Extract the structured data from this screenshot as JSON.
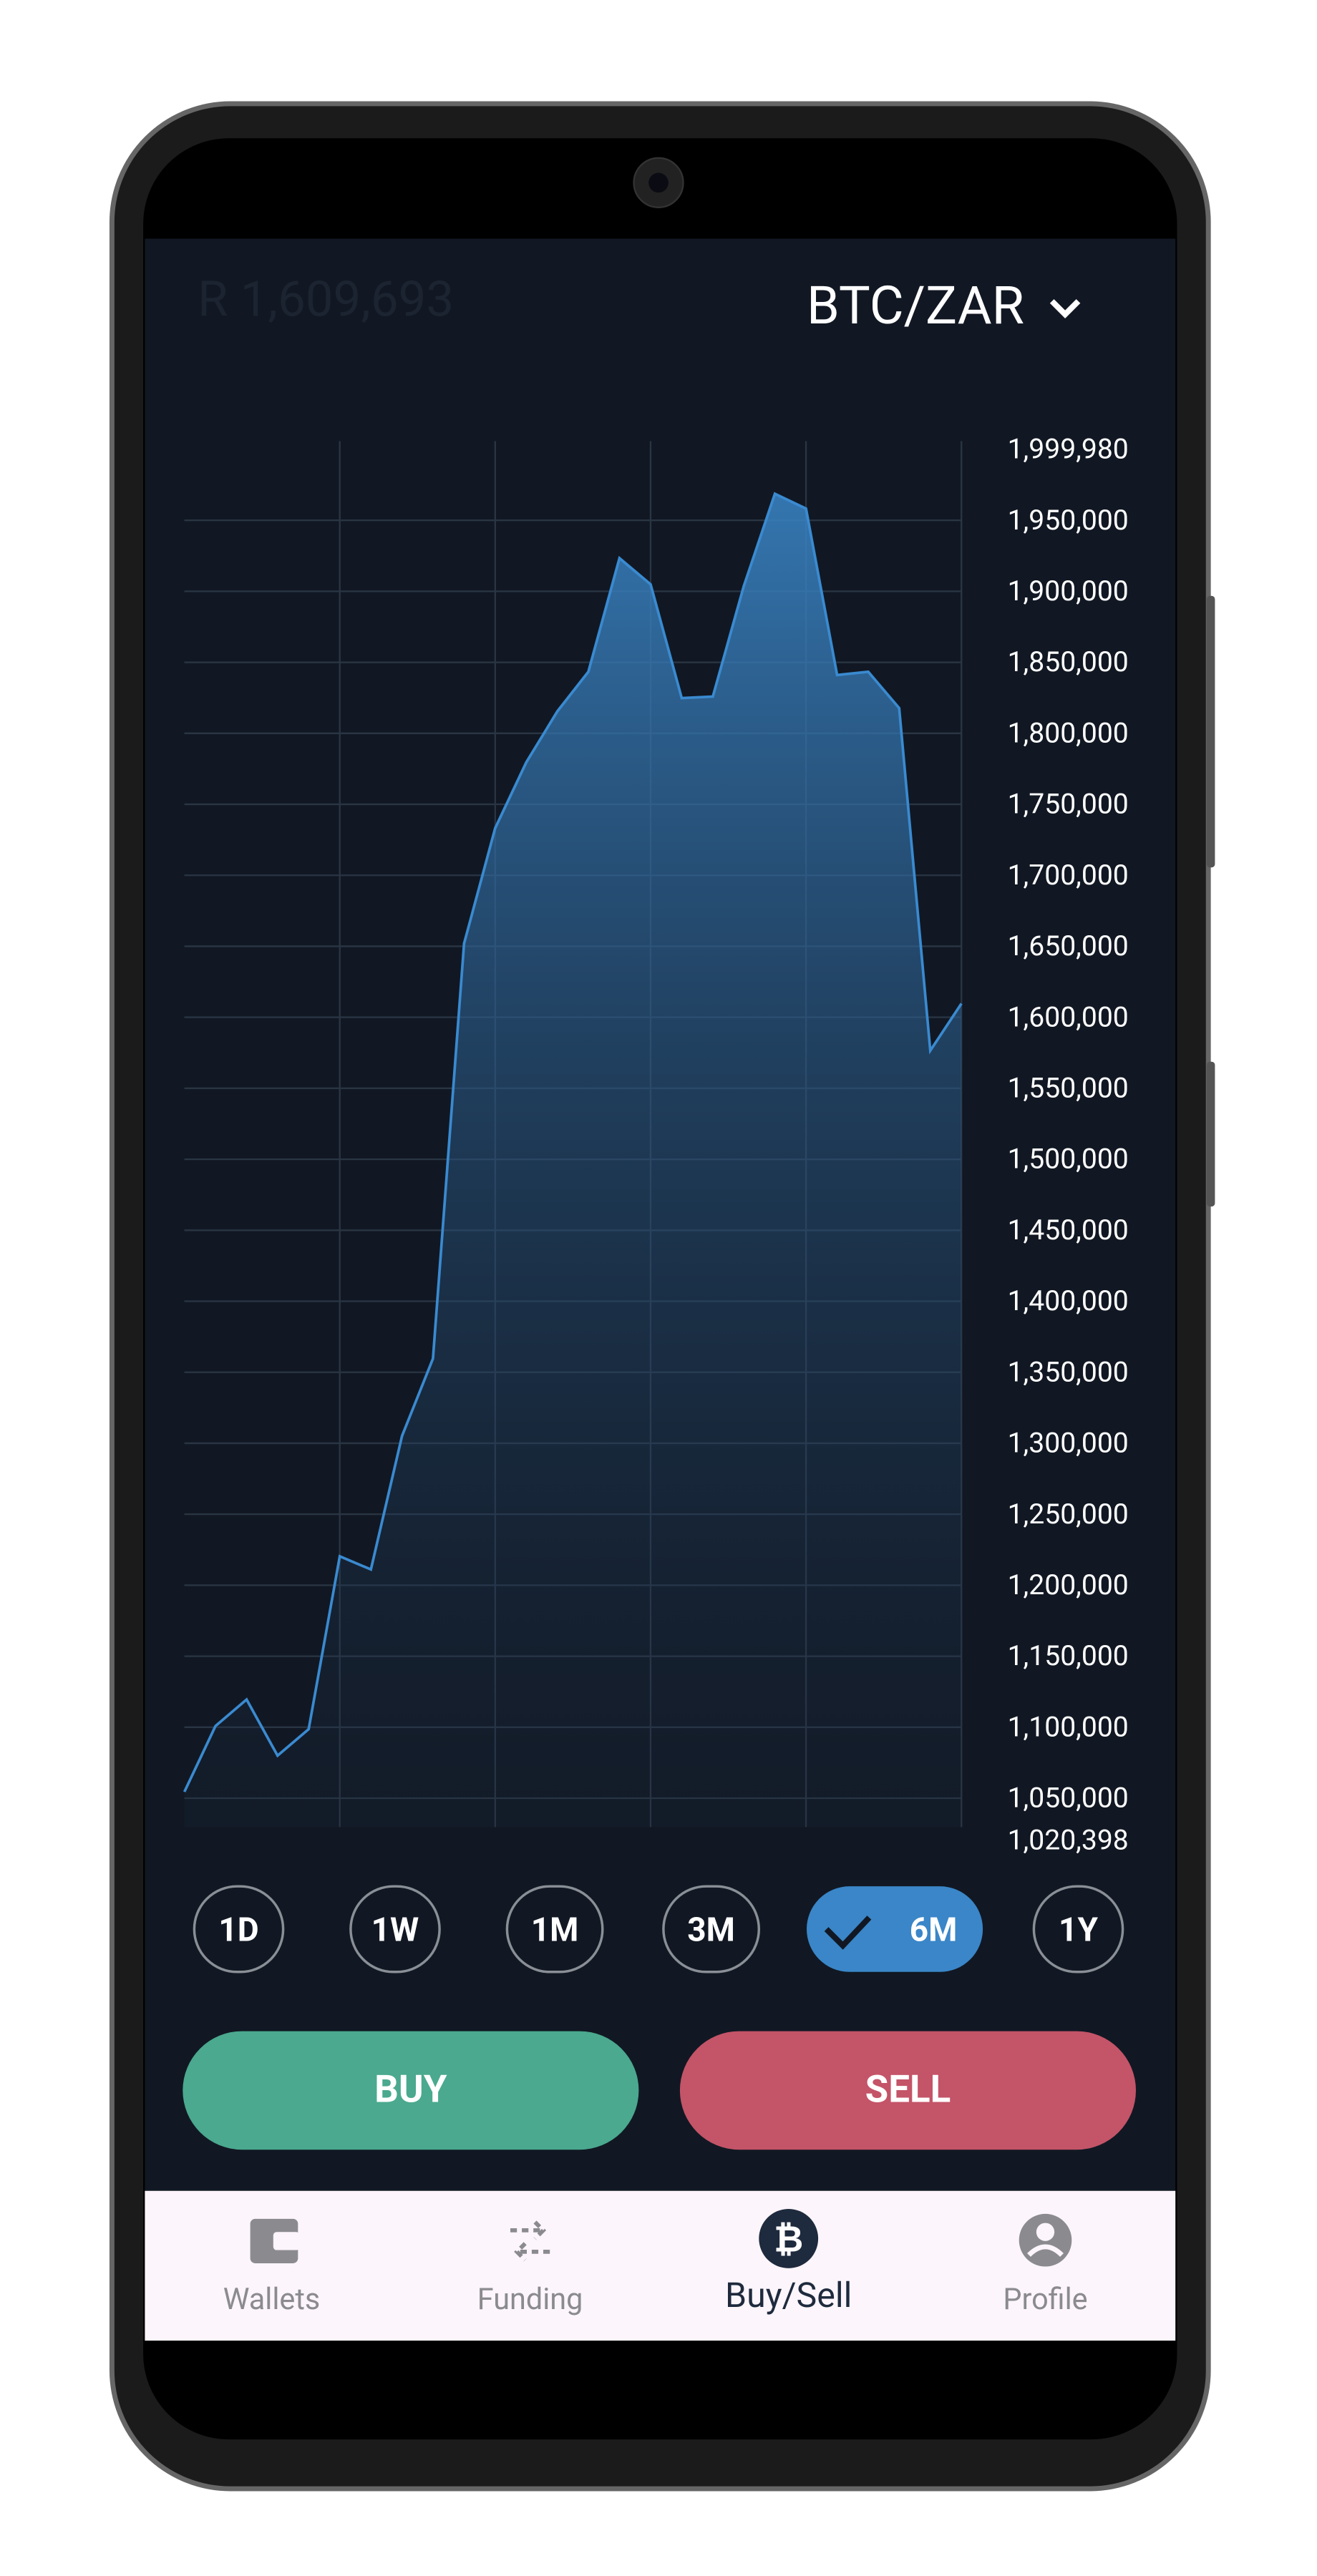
{
  "header": {
    "price": "R 1,609,693",
    "pair": "BTC/ZAR"
  },
  "chart_data": {
    "type": "area",
    "color": "#3a8ad0",
    "values": [
      1054500,
      1100900,
      1119500,
      1080000,
      1098600,
      1220400,
      1211100,
      1305100,
      1359600,
      1652000,
      1733200,
      1779600,
      1815500,
      1843400,
      1923400,
      1904900,
      1824800,
      1825900,
      1903700,
      1968700,
      1958200,
      1841000,
      1843400,
      1817800,
      1576500,
      1609693
    ],
    "ylim": [
      1020398,
      1999980
    ],
    "yticks": [
      {
        "value": 1020398,
        "label": "1,020,398"
      },
      {
        "value": 1050000,
        "label": "1,050,000"
      },
      {
        "value": 1100000,
        "label": "1,100,000"
      },
      {
        "value": 1150000,
        "label": "1,150,000"
      },
      {
        "value": 1200000,
        "label": "1,200,000"
      },
      {
        "value": 1250000,
        "label": "1,250,000"
      },
      {
        "value": 1300000,
        "label": "1,300,000"
      },
      {
        "value": 1350000,
        "label": "1,350,000"
      },
      {
        "value": 1400000,
        "label": "1,400,000"
      },
      {
        "value": 1450000,
        "label": "1,450,000"
      },
      {
        "value": 1500000,
        "label": "1,500,000"
      },
      {
        "value": 1550000,
        "label": "1,550,000"
      },
      {
        "value": 1600000,
        "label": "1,600,000"
      },
      {
        "value": 1650000,
        "label": "1,650,000"
      },
      {
        "value": 1700000,
        "label": "1,700,000"
      },
      {
        "value": 1750000,
        "label": "1,750,000"
      },
      {
        "value": 1800000,
        "label": "1,800,000"
      },
      {
        "value": 1850000,
        "label": "1,850,000"
      },
      {
        "value": 1900000,
        "label": "1,900,000"
      },
      {
        "value": 1950000,
        "label": "1,950,000"
      },
      {
        "value": 1999980,
        "label": "1,999,980"
      }
    ],
    "grid": true
  },
  "ranges": {
    "options": [
      "1D",
      "1W",
      "1M",
      "3M",
      "6M",
      "1Y"
    ],
    "selected": 4
  },
  "actions": [
    "BUY",
    "SELL"
  ],
  "nav": {
    "items": [
      "Wallets",
      "Funding",
      "Buy/Sell",
      "Profile"
    ],
    "selected": 2
  }
}
